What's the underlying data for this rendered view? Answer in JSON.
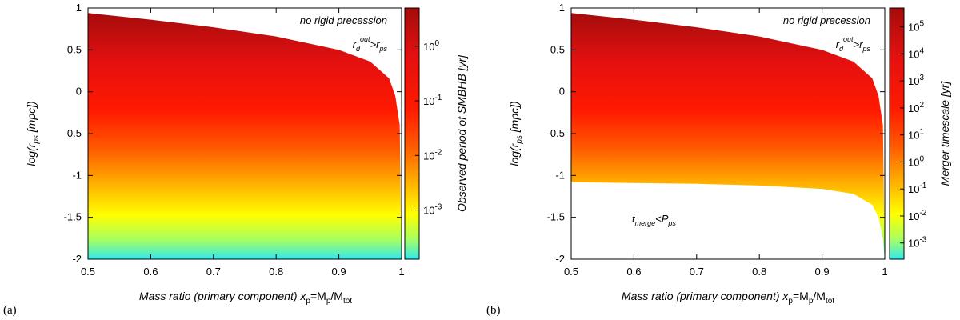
{
  "chart_data": [
    {
      "panel_label": "(a)",
      "type": "heatmap",
      "xlabel_main": "Mass ratio (primary component) ",
      "xlabel_var": "x",
      "xlabel_var_sub": "p",
      "xlabel_eq": "=M",
      "xlabel_eq_sub": "p",
      "xlabel_div": "/M",
      "xlabel_div_sub": "tot",
      "ylabel_main": "log(r",
      "ylabel_sub": "ps",
      "ylabel_end": " [mpc])",
      "xlim": [
        0.5,
        1.0
      ],
      "ylim": [
        -2,
        1
      ],
      "xticks": [
        "0.5",
        "0.6",
        "0.7",
        "0.8",
        "0.9",
        "1"
      ],
      "yticks": [
        "1",
        "0.5",
        "0",
        "-0.5",
        "-1",
        "-1.5",
        "-2"
      ],
      "upper_boundary": {
        "x": [
          0.5,
          0.6,
          0.7,
          0.8,
          0.9,
          0.95,
          0.98,
          0.99,
          0.997,
          1.0
        ],
        "y": [
          0.94,
          0.86,
          0.77,
          0.66,
          0.5,
          0.36,
          0.16,
          -0.05,
          -0.4,
          -2.0
        ]
      },
      "annotations": [
        {
          "text": "no rigid precession"
        },
        {
          "main": "r",
          "sub": "d",
          "sup": "out",
          "rel": ">r",
          "sub2": "ps"
        }
      ],
      "colorbar": {
        "label": "Observed period of SMBHB [yr]",
        "range_log10": [
          -3.9,
          0.7
        ],
        "ticks": [
          {
            "value": 0,
            "base": "10",
            "exp": "0"
          },
          {
            "value": -1,
            "base": "10",
            "exp": "-1"
          },
          {
            "value": -2,
            "base": "10",
            "exp": "-2"
          },
          {
            "value": -3,
            "base": "10",
            "exp": "-3"
          }
        ]
      }
    },
    {
      "panel_label": "(b)",
      "type": "heatmap",
      "xlabel_main": "Mass ratio (primary component) ",
      "xlabel_var": "x",
      "xlabel_var_sub": "p",
      "xlabel_eq": "=M",
      "xlabel_eq_sub": "p",
      "xlabel_div": "/M",
      "xlabel_div_sub": "tot",
      "ylabel_main": "log(r",
      "ylabel_sub": "ps",
      "ylabel_end": " [mpc])",
      "xlim": [
        0.5,
        1.0
      ],
      "ylim": [
        -2,
        1
      ],
      "xticks": [
        "0.5",
        "0.6",
        "0.7",
        "0.8",
        "0.9",
        "1"
      ],
      "yticks": [
        "1",
        "0.5",
        "0",
        "-0.5",
        "-1",
        "-1.5",
        "-2"
      ],
      "upper_boundary": {
        "x": [
          0.5,
          0.6,
          0.7,
          0.8,
          0.9,
          0.95,
          0.98,
          0.99,
          0.997,
          1.0
        ],
        "y": [
          0.94,
          0.86,
          0.77,
          0.66,
          0.5,
          0.36,
          0.16,
          -0.05,
          -0.4,
          -2.0
        ]
      },
      "lower_boundary": {
        "x": [
          0.5,
          0.6,
          0.7,
          0.8,
          0.9,
          0.95,
          0.98,
          0.99,
          0.997,
          1.0
        ],
        "y": [
          -1.08,
          -1.09,
          -1.1,
          -1.12,
          -1.16,
          -1.22,
          -1.35,
          -1.5,
          -1.75,
          -2.0
        ]
      },
      "annotations": [
        {
          "text": "no rigid precession"
        },
        {
          "main": "r",
          "sub": "d",
          "sup": "out",
          "rel": ">r",
          "sub2": "ps"
        },
        {
          "main": "t",
          "sub": "merge",
          "rel": "<P",
          "sub2": "ps"
        }
      ],
      "colorbar": {
        "label": "Merger timescale [yr]",
        "range_log10": [
          -3.6,
          5.7
        ],
        "ticks": [
          {
            "value": 5,
            "base": "10",
            "exp": "5"
          },
          {
            "value": 4,
            "base": "10",
            "exp": "4"
          },
          {
            "value": 3,
            "base": "10",
            "exp": "3"
          },
          {
            "value": 2,
            "base": "10",
            "exp": "2"
          },
          {
            "value": 1,
            "base": "10",
            "exp": "1"
          },
          {
            "value": 0,
            "base": "10",
            "exp": "0"
          },
          {
            "value": -1,
            "base": "10",
            "exp": "-1"
          },
          {
            "value": -2,
            "base": "10",
            "exp": "-2"
          },
          {
            "value": -3,
            "base": "10",
            "exp": "-3"
          }
        ]
      }
    }
  ]
}
